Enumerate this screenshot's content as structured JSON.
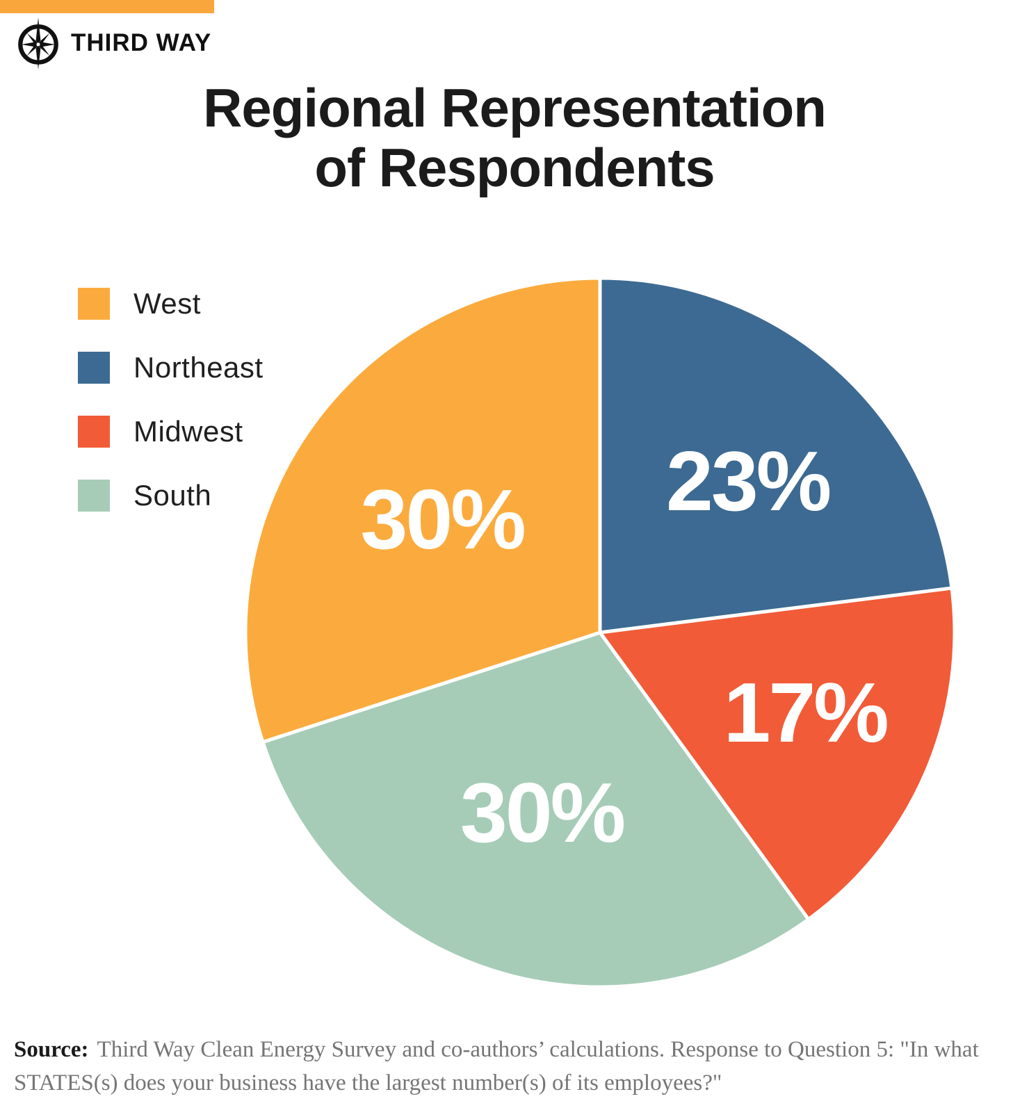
{
  "page": {
    "background": "#FFFFFF"
  },
  "header": {
    "top_bar_color": "#F9A63C",
    "brand": "THIRD WAY",
    "logo_icon": "compass-star-icon"
  },
  "title": {
    "line1": "Regional Representation",
    "line2": "of Respondents"
  },
  "chart_data": {
    "type": "pie",
    "title": "Regional Representation of Respondents",
    "categories": [
      "West",
      "Northeast",
      "Midwest",
      "South"
    ],
    "values": [
      30,
      23,
      17,
      30
    ],
    "unit": "percent",
    "labels": [
      "30%",
      "23%",
      "17%",
      "30%"
    ],
    "colors": [
      "#FBAB3D",
      "#3D6A92",
      "#F15B38",
      "#A6CCB8"
    ],
    "label_color": "#FFFFFF",
    "slice_border_color": "#FFFFFF",
    "draw_order_clockwise_from_top": [
      "Northeast",
      "Midwest",
      "South",
      "West"
    ],
    "start_angle_deg": 0,
    "legend_position": "upper-left"
  },
  "legend": {
    "items": [
      {
        "label": "West",
        "color": "#FBAB3D"
      },
      {
        "label": "Northeast",
        "color": "#3D6A92"
      },
      {
        "label": "Midwest",
        "color": "#F15B38"
      },
      {
        "label": "South",
        "color": "#A6CCB8"
      }
    ]
  },
  "source": {
    "label": "Source:",
    "text": "Third Way Clean Energy Survey and co-authors’ calculations. Response to Question 5: \"In what STATES(s) does your business have the largest number(s) of its employees?\""
  }
}
